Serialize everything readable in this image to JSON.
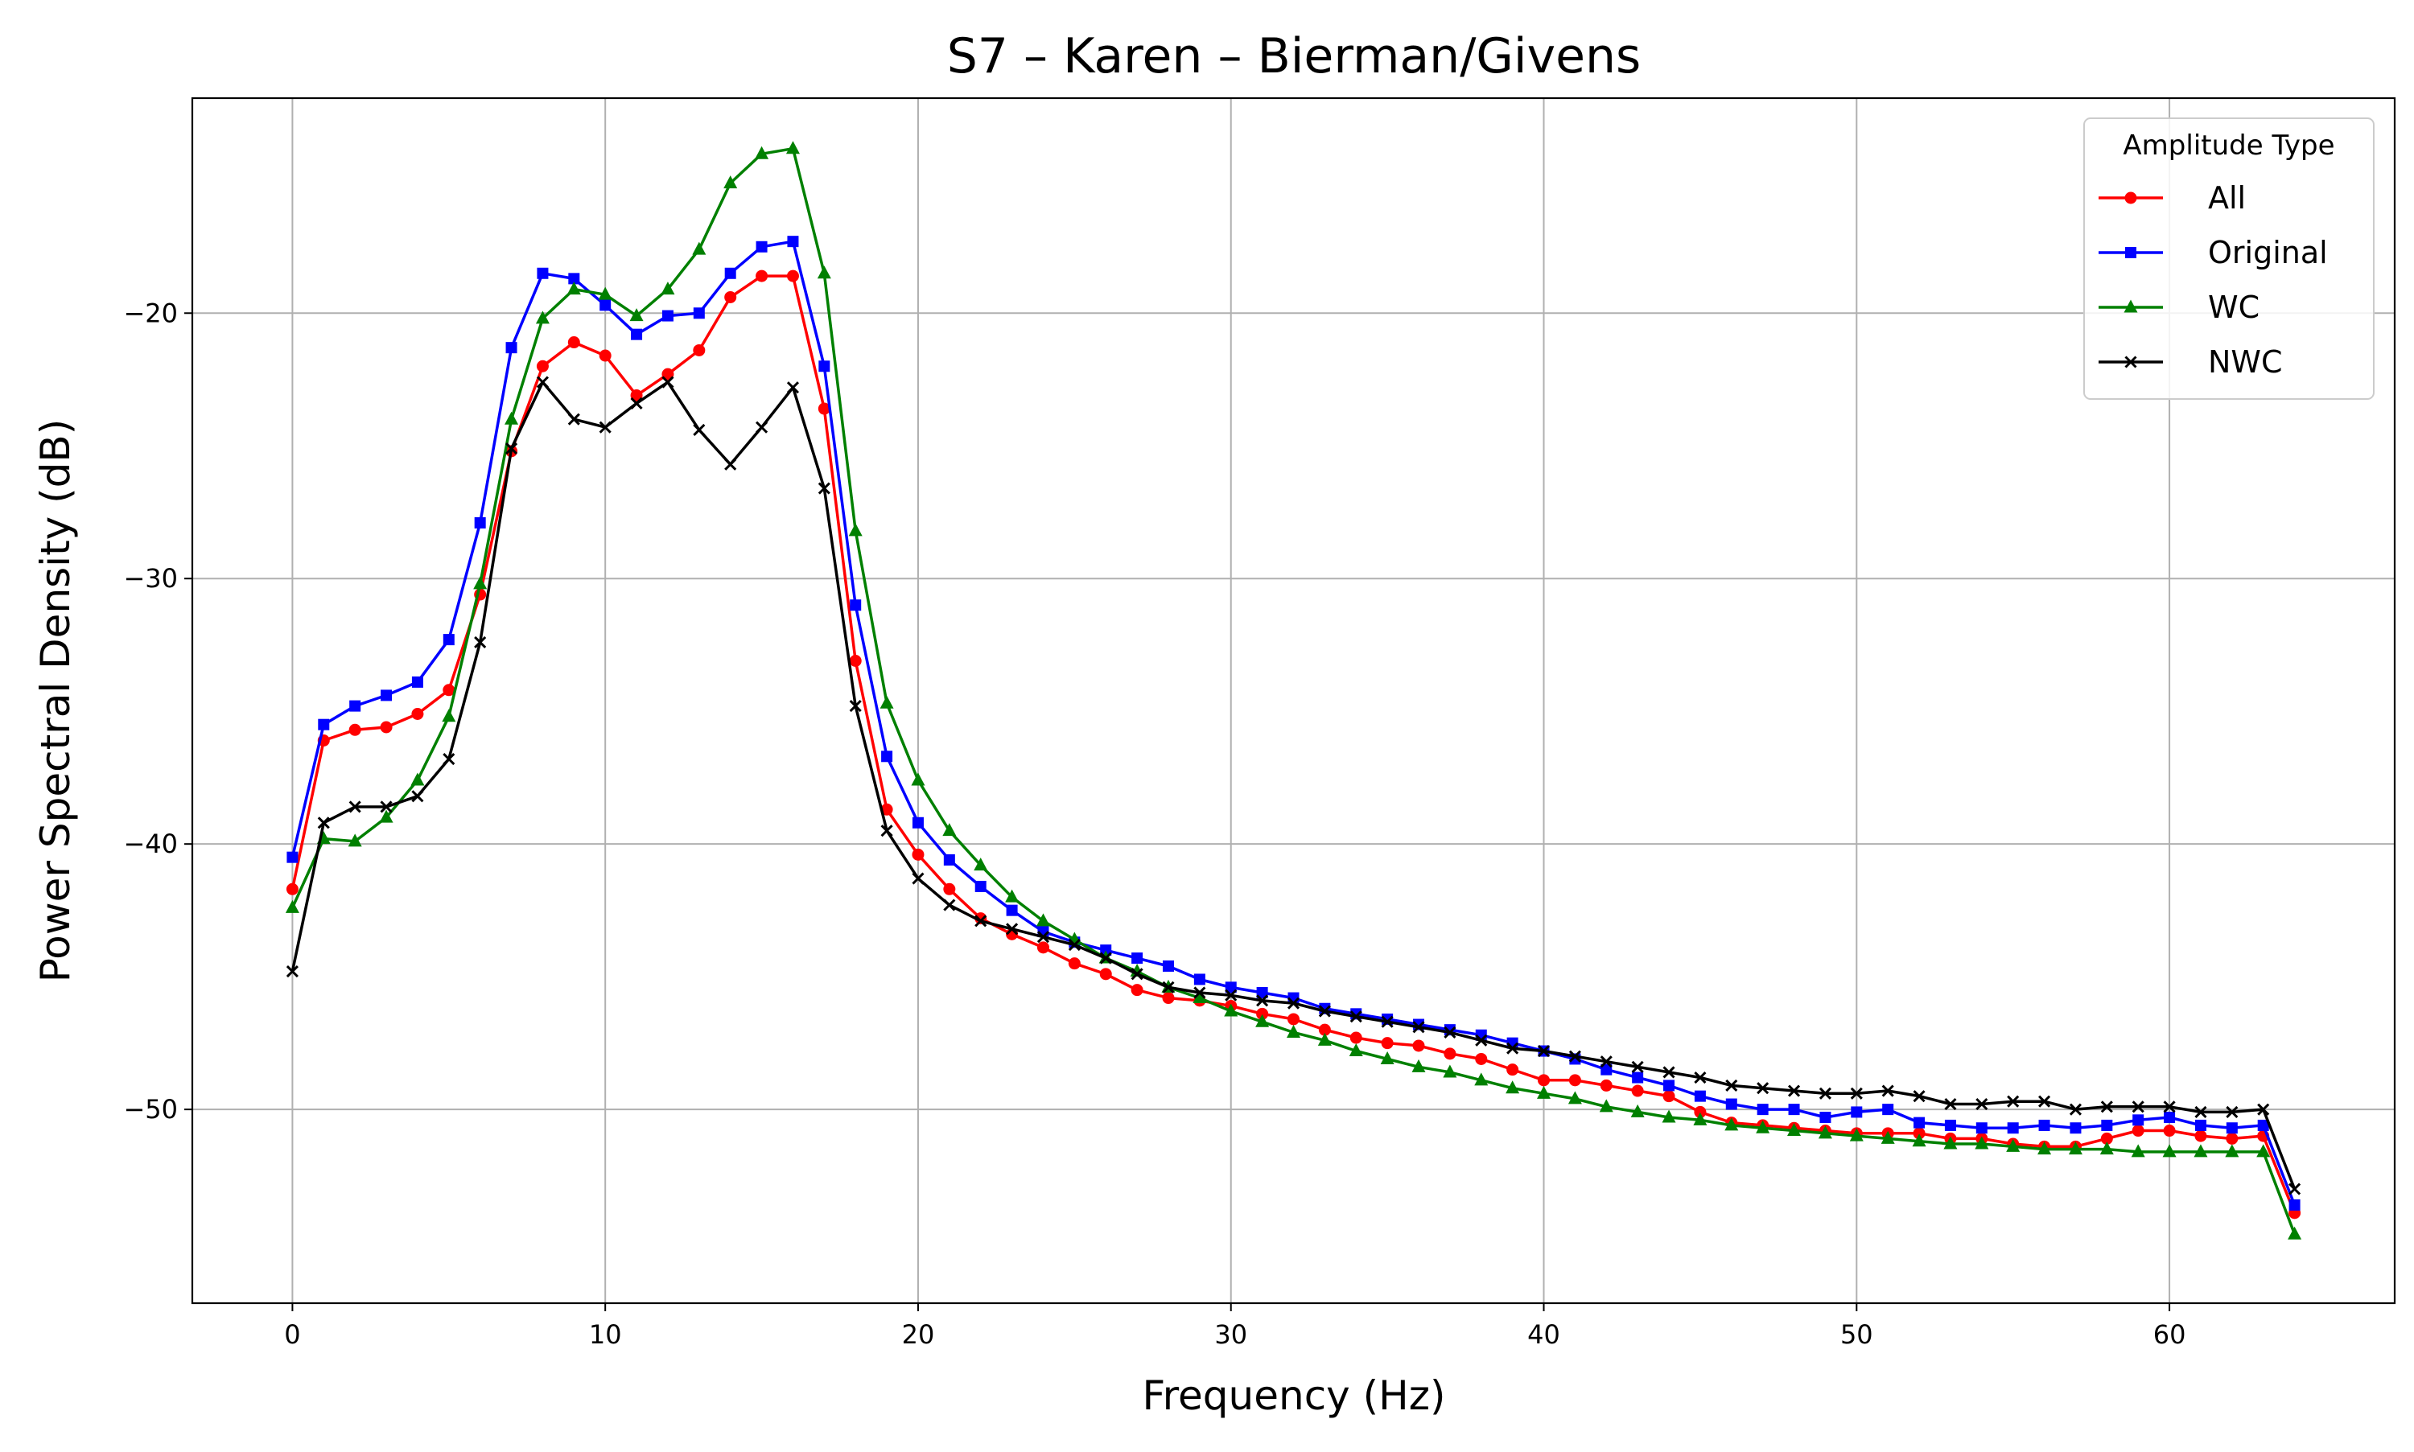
{
  "chart_data": {
    "type": "line",
    "title": "S7 – Karen – Bierman/Givens",
    "xlabel": "Frequency (Hz)",
    "ylabel": "Power Spectral Density (dB)",
    "xlim": [
      -3.2,
      67.2
    ],
    "ylim": [
      -57.3,
      -11.9
    ],
    "xticks": [
      0,
      10,
      20,
      30,
      40,
      50,
      60
    ],
    "yticks": [
      -20,
      -30,
      -40,
      -50
    ],
    "xtick_labels": [
      "0",
      "10",
      "20",
      "30",
      "40",
      "50",
      "60"
    ],
    "ytick_labels": [
      "−20",
      "−30",
      "−40",
      "−50"
    ],
    "grid": true,
    "legend": {
      "title": "Amplitude Type",
      "position": "top-right"
    },
    "x": [
      0,
      1,
      2,
      3,
      4,
      5,
      6,
      7,
      8,
      9,
      10,
      11,
      12,
      13,
      14,
      15,
      16,
      17,
      18,
      19,
      20,
      21,
      22,
      23,
      24,
      25,
      26,
      27,
      28,
      29,
      30,
      31,
      32,
      33,
      34,
      35,
      36,
      37,
      38,
      39,
      40,
      41,
      42,
      43,
      44,
      45,
      46,
      47,
      48,
      49,
      50,
      51,
      52,
      53,
      54,
      55,
      56,
      57,
      58,
      59,
      60,
      61,
      62,
      63,
      64
    ],
    "series": [
      {
        "name": "All",
        "color": "#ff0000",
        "marker": "circle",
        "values": [
          -41.7,
          -36.1,
          -35.7,
          -35.6,
          -35.1,
          -34.2,
          -30.6,
          -25.2,
          -22.0,
          -21.1,
          -21.6,
          -23.1,
          -22.3,
          -21.4,
          -19.4,
          -18.6,
          -18.6,
          -23.6,
          -33.1,
          -38.7,
          -40.4,
          -41.7,
          -42.8,
          -43.4,
          -43.9,
          -44.5,
          -44.9,
          -45.5,
          -45.8,
          -45.9,
          -46.1,
          -46.4,
          -46.6,
          -47.0,
          -47.3,
          -47.5,
          -47.6,
          -47.9,
          -48.1,
          -48.5,
          -48.9,
          -48.9,
          -49.1,
          -49.3,
          -49.5,
          -50.1,
          -50.5,
          -50.6,
          -50.7,
          -50.8,
          -50.9,
          -50.9,
          -50.9,
          -51.1,
          -51.1,
          -51.3,
          -51.4,
          -51.4,
          -51.1,
          -50.8,
          -50.8,
          -51.0,
          -51.1,
          -51.0,
          -53.9
        ]
      },
      {
        "name": "Original",
        "color": "#0000ff",
        "marker": "square",
        "values": [
          -40.5,
          -35.5,
          -34.8,
          -34.4,
          -33.9,
          -32.3,
          -27.9,
          -21.3,
          -18.5,
          -18.7,
          -19.7,
          -20.8,
          -20.1,
          -20.0,
          -18.5,
          -17.5,
          -17.3,
          -22.0,
          -31.0,
          -36.7,
          -39.2,
          -40.6,
          -41.6,
          -42.5,
          -43.3,
          -43.7,
          -44.0,
          -44.3,
          -44.6,
          -45.1,
          -45.4,
          -45.6,
          -45.8,
          -46.2,
          -46.4,
          -46.6,
          -46.8,
          -47.0,
          -47.2,
          -47.5,
          -47.8,
          -48.1,
          -48.5,
          -48.8,
          -49.1,
          -49.5,
          -49.8,
          -50.0,
          -50.0,
          -50.3,
          -50.1,
          -50.0,
          -50.5,
          -50.6,
          -50.7,
          -50.7,
          -50.6,
          -50.7,
          -50.6,
          -50.4,
          -50.3,
          -50.6,
          -50.7,
          -50.6,
          -53.6
        ]
      },
      {
        "name": "WC",
        "color": "#008000",
        "marker": "triangle",
        "values": [
          -42.4,
          -39.8,
          -39.9,
          -39.0,
          -37.6,
          -35.2,
          -30.2,
          -24.0,
          -20.2,
          -19.1,
          -19.3,
          -20.1,
          -19.1,
          -17.6,
          -15.1,
          -14.0,
          -13.8,
          -18.5,
          -28.2,
          -34.7,
          -37.6,
          -39.5,
          -40.8,
          -42.0,
          -42.9,
          -43.6,
          -44.3,
          -44.8,
          -45.4,
          -45.8,
          -46.3,
          -46.7,
          -47.1,
          -47.4,
          -47.8,
          -48.1,
          -48.4,
          -48.6,
          -48.9,
          -49.2,
          -49.4,
          -49.6,
          -49.9,
          -50.1,
          -50.3,
          -50.4,
          -50.6,
          -50.7,
          -50.8,
          -50.9,
          -51.0,
          -51.1,
          -51.2,
          -51.3,
          -51.3,
          -51.4,
          -51.5,
          -51.5,
          -51.5,
          -51.6,
          -51.6,
          -51.6,
          -51.6,
          -51.6,
          -54.7
        ]
      },
      {
        "name": "NWC",
        "color": "#000000",
        "marker": "x",
        "values": [
          -44.8,
          -39.2,
          -38.6,
          -38.6,
          -38.2,
          -36.8,
          -32.4,
          -25.1,
          -22.6,
          -24.0,
          -24.3,
          -23.4,
          -22.6,
          -24.4,
          -25.7,
          -24.3,
          -22.8,
          -26.6,
          -34.8,
          -39.5,
          -41.3,
          -42.3,
          -42.9,
          -43.2,
          -43.5,
          -43.8,
          -44.3,
          -44.9,
          -45.4,
          -45.6,
          -45.7,
          -45.9,
          -46.0,
          -46.3,
          -46.5,
          -46.7,
          -46.9,
          -47.1,
          -47.4,
          -47.7,
          -47.8,
          -48.0,
          -48.2,
          -48.4,
          -48.6,
          -48.8,
          -49.1,
          -49.2,
          -49.3,
          -49.4,
          -49.4,
          -49.3,
          -49.5,
          -49.8,
          -49.8,
          -49.7,
          -49.7,
          -50.0,
          -49.9,
          -49.9,
          -49.9,
          -50.1,
          -50.1,
          -50.0,
          -53.0
        ]
      }
    ]
  }
}
